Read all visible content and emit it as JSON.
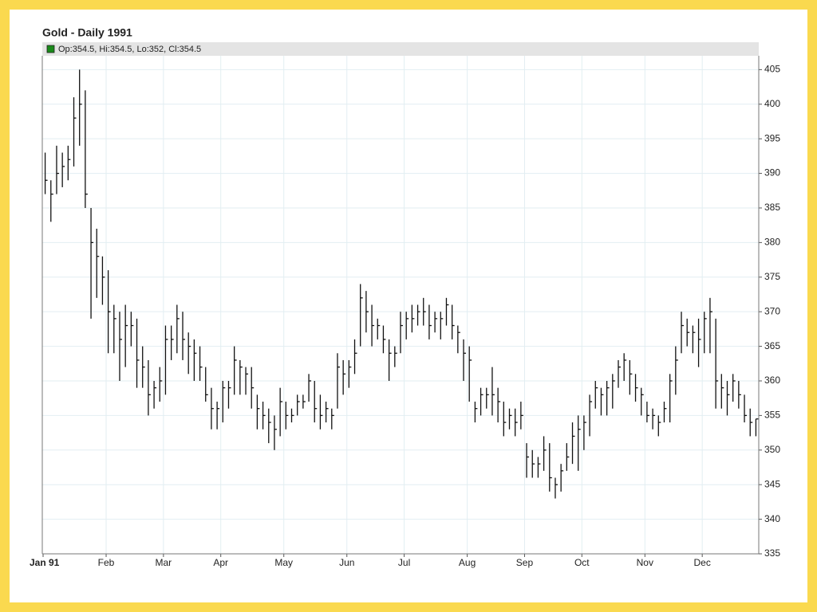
{
  "chart_data": {
    "type": "ohlc",
    "title": "Gold - Daily 1991",
    "legend": "Op:354.5, Hi:354.5, Lo:352, Cl:354.5",
    "legend_color": "#1a8a1a",
    "color": "#111111",
    "grid": true,
    "grid_color": "#e2eef2",
    "categories": [
      "Jan 91",
      null,
      null,
      null,
      null,
      null,
      null,
      null,
      null,
      null,
      null,
      "Feb",
      null,
      null,
      null,
      null,
      null,
      null,
      null,
      null,
      null,
      "Mar",
      null,
      null,
      null,
      null,
      null,
      null,
      null,
      null,
      null,
      "Apr",
      null,
      null,
      null,
      null,
      null,
      null,
      null,
      null,
      null,
      null,
      "May",
      null,
      null,
      null,
      null,
      null,
      null,
      null,
      null,
      null,
      null,
      "Jun",
      null,
      null,
      null,
      null,
      null,
      null,
      null,
      null,
      null,
      "Jul",
      null,
      null,
      null,
      null,
      null,
      null,
      null,
      null,
      null,
      null,
      "Aug",
      null,
      null,
      null,
      null,
      null,
      null,
      null,
      null,
      null,
      "Sep",
      null,
      null,
      null,
      null,
      null,
      null,
      null,
      null,
      null,
      "Oct",
      null,
      null,
      null,
      null,
      null,
      null,
      null,
      null,
      null,
      null,
      "Nov",
      null,
      null,
      null,
      null,
      null,
      null,
      null,
      null,
      null,
      "Dec",
      null,
      null,
      null,
      null,
      null,
      null,
      null,
      null,
      null
    ],
    "high": [
      393,
      389,
      394,
      393,
      394,
      401,
      405,
      402,
      385,
      382,
      378,
      376,
      371,
      370,
      371,
      370,
      369,
      365,
      363,
      360,
      362,
      368,
      368,
      371,
      370,
      367,
      366,
      365,
      362,
      359,
      357,
      360,
      360,
      365,
      363,
      362,
      362,
      358,
      357,
      356,
      355,
      359,
      357,
      356,
      358,
      358,
      361,
      360,
      358,
      357,
      356,
      364,
      363,
      363,
      366,
      374,
      373,
      371,
      369,
      368,
      366,
      365,
      370,
      370,
      371,
      371,
      372,
      371,
      370,
      370,
      372,
      371,
      368,
      366,
      365,
      357,
      359,
      359,
      362,
      359,
      357,
      356,
      356,
      357,
      351,
      350,
      349,
      352,
      351,
      346,
      348,
      351,
      354,
      355,
      355,
      358,
      360,
      359,
      360,
      361,
      363,
      364,
      363,
      361,
      359,
      357,
      356,
      355,
      357,
      361,
      365,
      370,
      369,
      368,
      369,
      370,
      372,
      369,
      361,
      360,
      361,
      360,
      358,
      356,
      354.5
    ],
    "low": [
      387,
      383,
      387,
      388,
      389,
      391,
      394,
      385,
      369,
      372,
      371,
      364,
      364,
      360,
      362,
      365,
      359,
      359,
      355,
      356,
      357,
      358,
      363,
      364,
      363,
      361,
      360,
      360,
      357,
      353,
      353,
      354,
      356,
      358,
      358,
      358,
      356,
      353,
      353,
      351,
      350,
      352,
      353,
      354,
      355,
      356,
      357,
      354,
      353,
      354,
      353,
      356,
      358,
      359,
      361,
      365,
      367,
      365,
      366,
      364,
      360,
      362,
      364,
      366,
      367,
      368,
      368,
      366,
      367,
      366,
      368,
      366,
      364,
      360,
      357,
      354,
      355,
      356,
      355,
      354,
      352,
      353,
      352,
      353,
      346,
      346,
      346,
      347,
      344,
      343,
      344,
      347,
      348,
      347,
      350,
      352,
      356,
      355,
      355,
      356,
      359,
      360,
      358,
      357,
      355,
      354,
      353,
      352,
      354,
      354,
      358,
      364,
      365,
      364,
      362,
      364,
      364,
      356,
      356,
      355,
      357,
      356,
      354,
      352,
      352
    ],
    "close": [
      389,
      387,
      390,
      391,
      392,
      398,
      400,
      387,
      380,
      378,
      375,
      370,
      369,
      366,
      368,
      368,
      363,
      362,
      358,
      359,
      360,
      366,
      366,
      369,
      366,
      365,
      364,
      362,
      358,
      356,
      356,
      359,
      359,
      363,
      362,
      361,
      359,
      356,
      355,
      354,
      353,
      357,
      355,
      355,
      357,
      357,
      360,
      356,
      355,
      356,
      355,
      362,
      361,
      362,
      364,
      372,
      370,
      368,
      368,
      366,
      364,
      364,
      368,
      369,
      369,
      370,
      370,
      368,
      369,
      369,
      371,
      368,
      367,
      364,
      363,
      356,
      358,
      358,
      358,
      357,
      354,
      355,
      354,
      355,
      349,
      348,
      348,
      350,
      346,
      345,
      347,
      349,
      352,
      353,
      354,
      357,
      359,
      358,
      359,
      360,
      362,
      363,
      361,
      359,
      358,
      355,
      355,
      354,
      356,
      360,
      363,
      368,
      367,
      367,
      366,
      369,
      370,
      360,
      359,
      358,
      360,
      358,
      355,
      354,
      354.5
    ],
    "ylim": [
      335,
      407
    ],
    "yticks": [
      335,
      340,
      345,
      350,
      355,
      360,
      365,
      370,
      375,
      380,
      385,
      390,
      395,
      400,
      405
    ]
  }
}
